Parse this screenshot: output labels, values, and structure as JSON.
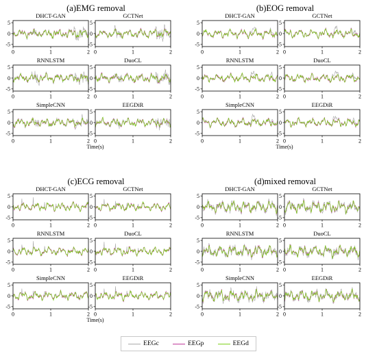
{
  "figure": {
    "legend": [
      {
        "name": "EEGc",
        "color": "#aaaaaa"
      },
      {
        "name": "EEGp",
        "color": "#c0399a"
      },
      {
        "name": "EEGd",
        "color": "#7cd11a"
      }
    ],
    "time_label": "Time(s)"
  },
  "chart_data": [
    {
      "type": "line",
      "title": "(a)EMG removal",
      "artifact": "emg",
      "subplots": [
        "DHCT-GAN",
        "GCTNet",
        "RNNLSTM",
        "DuoCL",
        "SimpleCNN",
        "EEGDiR"
      ],
      "xticks": [
        0,
        1,
        2
      ],
      "yticks": [
        -5,
        0,
        5
      ],
      "xlim": [
        0,
        2
      ],
      "ylim": [
        -6,
        6
      ],
      "xlabel": "Time(s)",
      "series": [
        {
          "name": "EEGc"
        },
        {
          "name": "EEGp"
        },
        {
          "name": "EEGd"
        }
      ]
    },
    {
      "type": "line",
      "title": "(b)EOG removal",
      "artifact": "eog",
      "subplots": [
        "DHCT-GAN",
        "GCTNet",
        "RNNLSTM",
        "DuoCL",
        "SimpleCNN",
        "EEGDiR"
      ],
      "xticks": [
        0,
        1,
        2
      ],
      "yticks": [
        -5,
        0,
        5
      ],
      "xlim": [
        0,
        2
      ],
      "ylim": [
        -6,
        6
      ],
      "xlabel": "Time(s)",
      "series": [
        {
          "name": "EEGc"
        },
        {
          "name": "EEGp"
        },
        {
          "name": "EEGd"
        }
      ]
    },
    {
      "type": "line",
      "title": "(c)ECG removal",
      "artifact": "ecg",
      "subplots": [
        "DHCT-GAN",
        "GCTNet",
        "RNNLSTM",
        "DuoCL",
        "SimpleCNN",
        "EEGDiR"
      ],
      "xticks": [
        0,
        1,
        2
      ],
      "yticks": [
        -5,
        0,
        5
      ],
      "xlim": [
        0,
        2
      ],
      "ylim": [
        -6,
        6
      ],
      "xlabel": "Time(s)",
      "series": [
        {
          "name": "EEGc"
        },
        {
          "name": "EEGp"
        },
        {
          "name": "EEGd"
        }
      ]
    },
    {
      "type": "line",
      "title": "(d)mixed removal",
      "artifact": "mixed",
      "subplots": [
        "DHCT-GAN",
        "GCTNet",
        "RNNLSTM",
        "DuoCL",
        "SimpleCNN",
        "EEGDiR"
      ],
      "xticks": [
        0,
        1,
        2
      ],
      "yticks": [
        -5,
        0,
        5
      ],
      "xlim": [
        0,
        2
      ],
      "ylim": [
        -6,
        6
      ],
      "xlabel": "",
      "series": [
        {
          "name": "EEGc"
        },
        {
          "name": "EEGp"
        },
        {
          "name": "EEGd"
        }
      ]
    }
  ]
}
